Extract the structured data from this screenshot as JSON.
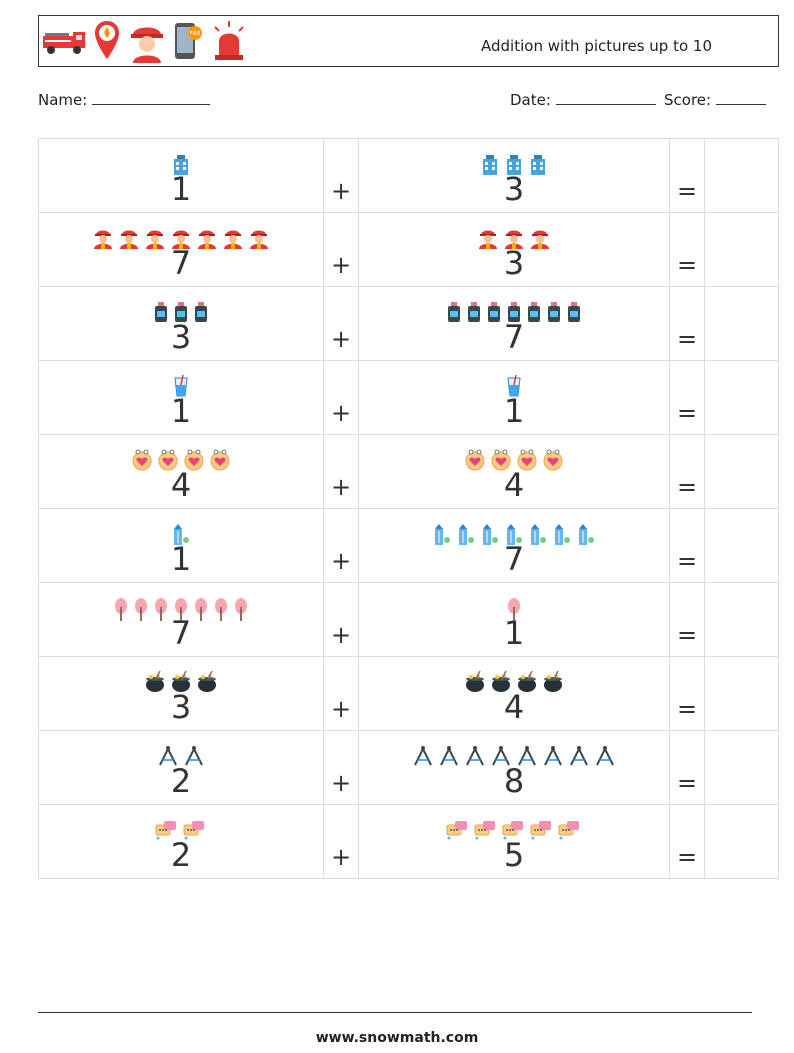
{
  "header": {
    "title": "Addition with pictures up to 10",
    "icons": [
      "fire-truck-icon",
      "location-pin-fire-icon",
      "firefighter-icon",
      "phone-fire-icon",
      "siren-icon"
    ]
  },
  "meta": {
    "name_label": "Name:",
    "date_label": "Date:",
    "score_label": "Score:"
  },
  "problems": [
    {
      "a": 1,
      "b": 3,
      "icon": "building-icon",
      "plus": "+",
      "equals": "="
    },
    {
      "a": 7,
      "b": 3,
      "icon": "firefighter-icon",
      "plus": "+",
      "equals": "="
    },
    {
      "a": 3,
      "b": 7,
      "icon": "bottle-icon",
      "plus": "+",
      "equals": "="
    },
    {
      "a": 1,
      "b": 1,
      "icon": "water-glass-icon",
      "plus": "+",
      "equals": "="
    },
    {
      "a": 4,
      "b": 4,
      "icon": "heart-badge-icon",
      "plus": "+",
      "equals": "="
    },
    {
      "a": 1,
      "b": 7,
      "icon": "tower-plant-icon",
      "plus": "+",
      "equals": "="
    },
    {
      "a": 7,
      "b": 1,
      "icon": "tree-icon",
      "plus": "+",
      "equals": "="
    },
    {
      "a": 3,
      "b": 4,
      "icon": "cauldron-icon",
      "plus": "+",
      "equals": "="
    },
    {
      "a": 2,
      "b": 8,
      "icon": "compass-icon",
      "plus": "+",
      "equals": "="
    },
    {
      "a": 2,
      "b": 5,
      "icon": "chat-bubble-icon",
      "plus": "+",
      "equals": "="
    }
  ],
  "footer": {
    "url": "www.snowmath.com"
  }
}
